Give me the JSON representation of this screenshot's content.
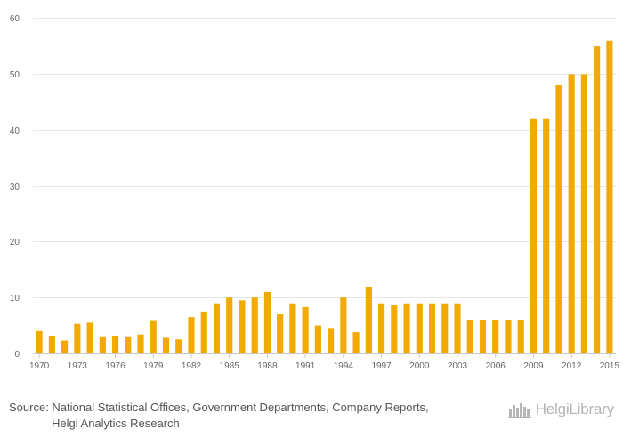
{
  "chart_data": {
    "type": "bar",
    "title": "",
    "xlabel": "",
    "ylabel": "",
    "ylim": [
      0,
      60
    ],
    "yticks": [
      0,
      10,
      20,
      30,
      40,
      50,
      60
    ],
    "grid": true,
    "color": "#f2a900",
    "categories": [
      "1970",
      "1971",
      "1972",
      "1973",
      "1974",
      "1975",
      "1976",
      "1977",
      "1978",
      "1979",
      "1980",
      "1981",
      "1982",
      "1983",
      "1984",
      "1985",
      "1986",
      "1987",
      "1988",
      "1989",
      "1990",
      "1991",
      "1992",
      "1993",
      "1994",
      "1995",
      "1996",
      "1997",
      "1998",
      "1999",
      "2000",
      "2001",
      "2002",
      "2003",
      "2004",
      "2005",
      "2006",
      "2007",
      "2008",
      "2009",
      "2010",
      "2011",
      "2012",
      "2013",
      "2014",
      "2015"
    ],
    "x_tick_labels": [
      "1970",
      "1973",
      "1976",
      "1979",
      "1982",
      "1985",
      "1988",
      "1991",
      "1994",
      "1997",
      "2000",
      "2003",
      "2006",
      "2009",
      "2012",
      "2015"
    ],
    "values": [
      4,
      3.1,
      2.3,
      5.3,
      5.5,
      2.9,
      3.1,
      2.9,
      3.4,
      5.8,
      2.8,
      2.5,
      6.5,
      7.5,
      8.8,
      10,
      9.5,
      10,
      11,
      7,
      8.8,
      8.3,
      5,
      4.4,
      10,
      3.8,
      11.9,
      8.8,
      8.6,
      8.8,
      8.8,
      8.8,
      8.8,
      8.8,
      6,
      6,
      6,
      6,
      6,
      41.9,
      41.9,
      47.9,
      49.9,
      49.9,
      54.9,
      55.9
    ]
  },
  "footer": {
    "source_line1": "Source: National Statistical Offices, Government Departments, Company Reports,",
    "source_line2": "Helgi Analytics Research",
    "logo_text": "HelgiLibrary"
  }
}
